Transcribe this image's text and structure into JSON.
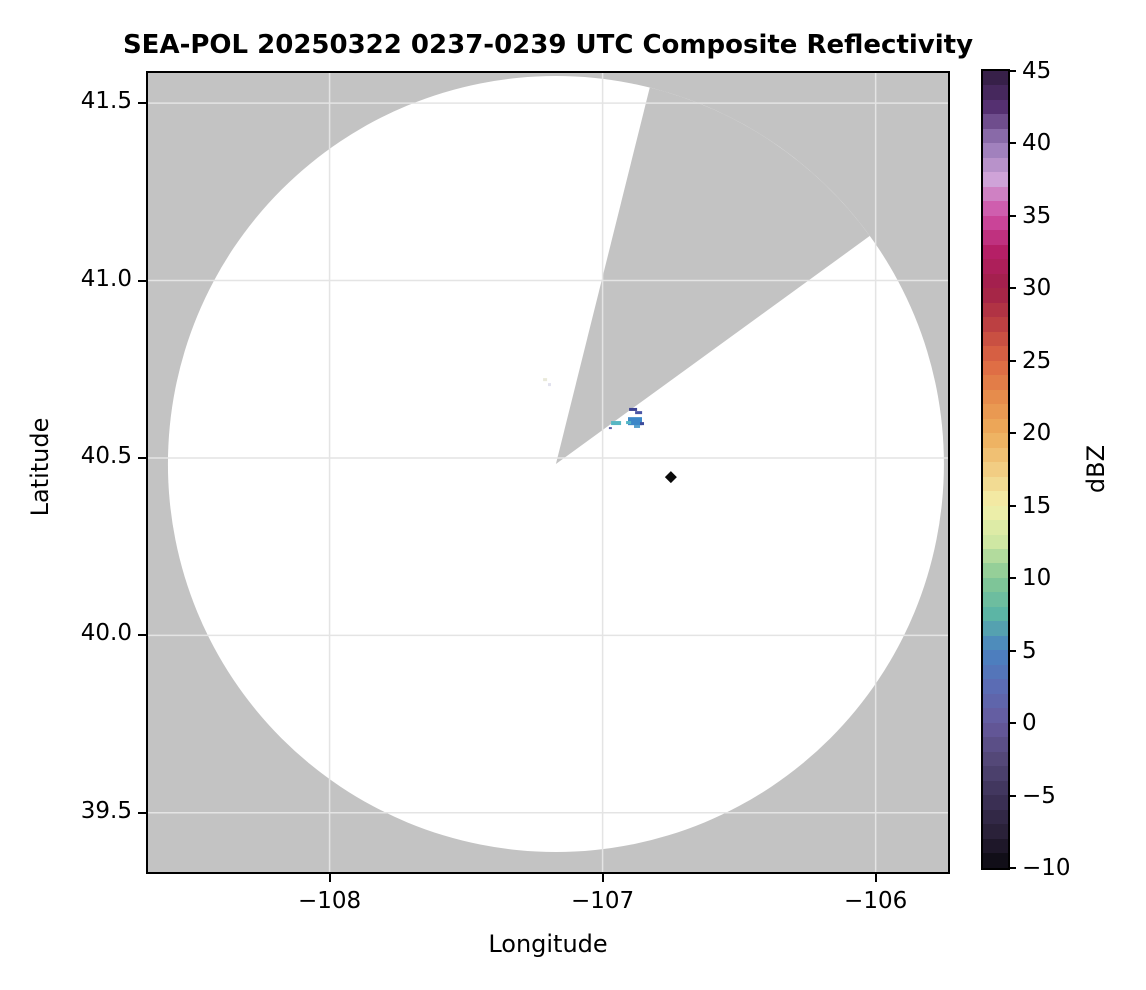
{
  "figure": {
    "title": "SEA-POL 20250322 0237-0239 UTC Composite Reflectivity"
  },
  "axes": {
    "xlabel": "Longitude",
    "ylabel": "Latitude",
    "xlim": [
      -108.665,
      -105.735
    ],
    "ylim": [
      39.333,
      41.585
    ],
    "x_ticks": [
      {
        "v": -108,
        "label": "−108"
      },
      {
        "v": -107,
        "label": "−107"
      },
      {
        "v": -106,
        "label": "−106"
      }
    ],
    "y_ticks": [
      {
        "v": 41.5,
        "label": "41.5"
      },
      {
        "v": 41.0,
        "label": "41.0"
      },
      {
        "v": 40.5,
        "label": "40.5"
      },
      {
        "v": 40.0,
        "label": "40.0"
      },
      {
        "v": 39.5,
        "label": "39.5"
      }
    ]
  },
  "colorbar": {
    "label": "dBZ",
    "vmin": -10,
    "vmax": 45,
    "tick_values": [
      45,
      40,
      35,
      30,
      25,
      20,
      15,
      10,
      5,
      0,
      -5,
      -10
    ],
    "tick_labels": [
      "45",
      "40",
      "35",
      "30",
      "25",
      "20",
      "15",
      "10",
      "5",
      "0",
      "−5",
      "−10"
    ],
    "stops": [
      {
        "v": 45.0,
        "c": "#2f1c3f"
      },
      {
        "v": 42.5,
        "c": "#553071"
      },
      {
        "v": 40.0,
        "c": "#9678b6"
      },
      {
        "v": 37.5,
        "c": "#cfa3d8"
      },
      {
        "v": 35.0,
        "c": "#cf4da4"
      },
      {
        "v": 32.5,
        "c": "#b51f66"
      },
      {
        "v": 30.0,
        "c": "#a02048"
      },
      {
        "v": 27.5,
        "c": "#bc4042"
      },
      {
        "v": 25.0,
        "c": "#dd6743"
      },
      {
        "v": 22.5,
        "c": "#e68c4c"
      },
      {
        "v": 20.0,
        "c": "#edad5b"
      },
      {
        "v": 17.5,
        "c": "#f2cd83"
      },
      {
        "v": 15.0,
        "c": "#f3f0ab"
      },
      {
        "v": 12.5,
        "c": "#cfe7a3"
      },
      {
        "v": 10.0,
        "c": "#86c995"
      },
      {
        "v": 7.5,
        "c": "#5cb5a5"
      },
      {
        "v": 5.0,
        "c": "#4a82c1"
      },
      {
        "v": 2.5,
        "c": "#5b6cb4"
      },
      {
        "v": 0.0,
        "c": "#665a9e"
      },
      {
        "v": -2.5,
        "c": "#544878"
      },
      {
        "v": -5.0,
        "c": "#3e3359"
      },
      {
        "v": -7.5,
        "c": "#2a2139"
      },
      {
        "v": -10.0,
        "c": "#0b0910"
      }
    ]
  },
  "chart_data": {
    "type": "radar-ppi",
    "quantity": "Composite Reflectivity",
    "units": "dBZ",
    "radar": {
      "lon": -107.171,
      "lat": 40.483,
      "range_deg_lon": 1.421
    },
    "blocked_sector": {
      "azimuth_start_deg": 14,
      "azimuth_end_deg": 54
    },
    "colors": {
      "no_data": "#c3c3c3",
      "coverage": "#ffffff",
      "gridline": "#e4e4e4",
      "frame": "#000000"
    },
    "echoes": [
      {
        "lon": -106.903,
        "lat": 40.641,
        "w": 8,
        "h": 3,
        "color": "#3c4293"
      },
      {
        "lon": -106.881,
        "lat": 40.632,
        "w": 7,
        "h": 3,
        "color": "#4a55a5"
      },
      {
        "lon": -106.907,
        "lat": 40.615,
        "w": 14,
        "h": 8,
        "color": "#3c87c8"
      },
      {
        "lon": -106.914,
        "lat": 40.604,
        "w": 5,
        "h": 3,
        "color": "#52b5c5"
      },
      {
        "lon": -106.863,
        "lat": 40.601,
        "w": 4,
        "h": 3,
        "color": "#3d4b9c"
      },
      {
        "lon": -106.885,
        "lat": 40.593,
        "w": 6,
        "h": 3,
        "color": "#57a0cd"
      },
      {
        "lon": -106.969,
        "lat": 40.604,
        "w": 10,
        "h": 4,
        "color": "#58b7c3"
      },
      {
        "lon": -106.977,
        "lat": 40.587,
        "w": 3,
        "h": 2,
        "color": "#5a5fa8"
      },
      {
        "lon": -107.218,
        "lat": 40.725,
        "w": 4,
        "h": 3,
        "color": "#e9e9da"
      },
      {
        "lon": -107.2,
        "lat": 40.711,
        "w": 3,
        "h": 3,
        "color": "#e2e2ee"
      }
    ],
    "site_marker": {
      "lon": -106.75,
      "lat": 40.446,
      "shape": "diamond",
      "size": 12,
      "color": "#0a0a0a"
    }
  }
}
